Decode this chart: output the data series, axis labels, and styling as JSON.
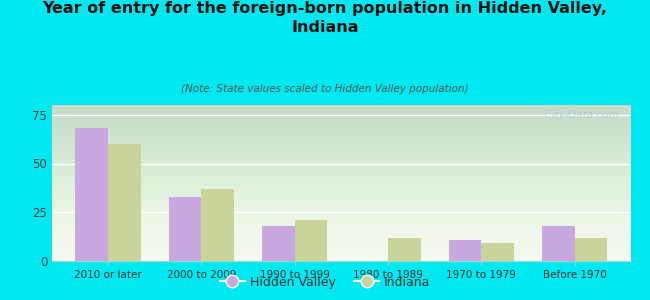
{
  "title": "Year of entry for the foreign-born population in Hidden Valley,\nIndiana",
  "subtitle": "(Note: State values scaled to Hidden Valley population)",
  "categories": [
    "2010 or later",
    "2000 to 2009",
    "1990 to 1999",
    "1980 to 1989",
    "1970 to 1979",
    "Before 1970"
  ],
  "hidden_valley": [
    68,
    33,
    18,
    0,
    11,
    18
  ],
  "indiana": [
    60,
    37,
    21,
    12,
    9,
    12
  ],
  "hv_color": "#c9a8e0",
  "indiana_color": "#c8d49a",
  "bg_color": "#00e8f0",
  "plot_bg_top": "#e8f0e0",
  "plot_bg_bottom": "#f5faf0",
  "ylim": [
    0,
    80
  ],
  "yticks": [
    0,
    25,
    50,
    75
  ],
  "bar_width": 0.35,
  "watermark": "  City-Data.com"
}
